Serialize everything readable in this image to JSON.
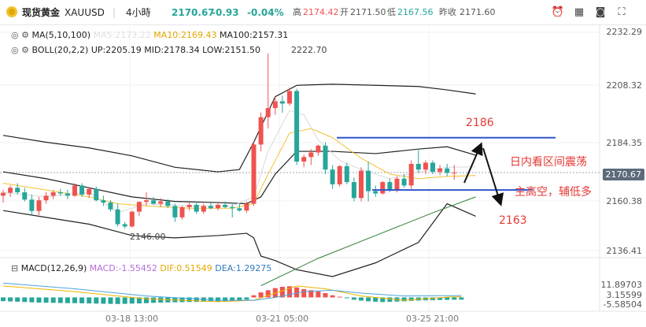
{
  "header": {
    "name": "现货黄金",
    "symbol": "XAUUSD",
    "interval": "4小時",
    "last": "2170.67",
    "change": "-0.93",
    "change_pct": "-0.04%",
    "high_label": "高",
    "high": "2174.42",
    "open_label": "开",
    "open": "2171.50",
    "low_label": "低",
    "low": "2167.56",
    "prev_label": "昨收",
    "prev": "2171.60"
  },
  "indicators": {
    "ma_label": "MA(5,10,100)",
    "ma5": "MA5:2173.22",
    "ma10": "MA10:2169.43",
    "ma100": "MA100:2157.31",
    "boll_label": "BOLL(20,2,2)",
    "boll_up": "UP:2205.19",
    "boll_mid": "MID:2178.34",
    "boll_low": "LOW:2151.50",
    "macd_label": "MACD(12,26,9)",
    "macd": "MACD:-1.55452",
    "dif": "DIF:0.51549",
    "dea": "DEA:1.29275"
  },
  "colors": {
    "up": "#26a69a",
    "down": "#ef5350",
    "ma5": "#333333",
    "ma10": "#f2c230",
    "ma100": "#2e7d32",
    "boll": "#222222",
    "level_line": "#2f55c9",
    "annotation": "#e53935",
    "dif": "#f0b400",
    "dea": "#4aa3e0"
  },
  "icons": [
    "eye-icon",
    "settings-icon",
    "close-icon",
    "collapse-icon",
    "chevron-down-icon",
    "alarm-icon",
    "grid-icon",
    "camera-icon",
    "fullscreen-icon"
  ],
  "chart_data": {
    "type": "candlestick",
    "price_axis_ticks": [
      "2232.29",
      "2208.32",
      "2184.35",
      "2160.38",
      "2136.41"
    ],
    "current_price_badge": "2170.67",
    "macd_axis_ticks": [
      "11.89703",
      "3.15599",
      "-5.58504"
    ],
    "x_ticks": [
      "03-18 13:00",
      "03-21 05:00",
      "03-25 21:00"
    ],
    "ylim": [
      2130,
      2236
    ],
    "candles": [
      {
        "o": 2160.5,
        "h": 2163.0,
        "l": 2157.5,
        "c": 2161.8
      },
      {
        "o": 2161.8,
        "h": 2165.0,
        "l": 2160.0,
        "c": 2164.0
      },
      {
        "o": 2164.0,
        "h": 2166.0,
        "l": 2161.0,
        "c": 2162.0
      },
      {
        "o": 2162.0,
        "h": 2164.0,
        "l": 2158.0,
        "c": 2158.8
      },
      {
        "o": 2158.8,
        "h": 2161.0,
        "l": 2152.0,
        "c": 2153.8
      },
      {
        "o": 2153.8,
        "h": 2160.0,
        "l": 2152.0,
        "c": 2158.5
      },
      {
        "o": 2158.5,
        "h": 2162.0,
        "l": 2157.0,
        "c": 2160.5
      },
      {
        "o": 2160.5,
        "h": 2163.0,
        "l": 2159.0,
        "c": 2162.0
      },
      {
        "o": 2162.0,
        "h": 2163.5,
        "l": 2160.5,
        "c": 2161.5
      },
      {
        "o": 2161.5,
        "h": 2163.0,
        "l": 2159.0,
        "c": 2160.5
      },
      {
        "o": 2160.5,
        "h": 2166.0,
        "l": 2160.0,
        "c": 2165.0
      },
      {
        "o": 2165.0,
        "h": 2166.0,
        "l": 2160.0,
        "c": 2161.0
      },
      {
        "o": 2161.0,
        "h": 2164.0,
        "l": 2159.5,
        "c": 2163.5
      },
      {
        "o": 2163.5,
        "h": 2164.5,
        "l": 2158.0,
        "c": 2158.5
      },
      {
        "o": 2158.5,
        "h": 2160.5,
        "l": 2156.0,
        "c": 2157.5
      },
      {
        "o": 2157.5,
        "h": 2158.5,
        "l": 2153.5,
        "c": 2154.5
      },
      {
        "o": 2154.5,
        "h": 2157.0,
        "l": 2147.0,
        "c": 2148.0
      },
      {
        "o": 2148.0,
        "h": 2149.0,
        "l": 2146.0,
        "c": 2147.0
      },
      {
        "o": 2147.0,
        "h": 2154.0,
        "l": 2146.5,
        "c": 2153.5
      },
      {
        "o": 2153.5,
        "h": 2158.0,
        "l": 2151.5,
        "c": 2157.8
      },
      {
        "o": 2157.8,
        "h": 2162.0,
        "l": 2156.0,
        "c": 2158.5
      },
      {
        "o": 2158.5,
        "h": 2160.0,
        "l": 2156.5,
        "c": 2157.0
      },
      {
        "o": 2157.0,
        "h": 2159.5,
        "l": 2155.5,
        "c": 2158.0
      },
      {
        "o": 2158.0,
        "h": 2159.0,
        "l": 2155.0,
        "c": 2156.0
      },
      {
        "o": 2156.0,
        "h": 2157.0,
        "l": 2149.0,
        "c": 2151.0
      },
      {
        "o": 2151.0,
        "h": 2156.0,
        "l": 2150.0,
        "c": 2155.5
      },
      {
        "o": 2155.5,
        "h": 2157.5,
        "l": 2154.0,
        "c": 2156.5
      },
      {
        "o": 2156.5,
        "h": 2158.0,
        "l": 2152.5,
        "c": 2153.5
      },
      {
        "o": 2153.5,
        "h": 2157.0,
        "l": 2152.5,
        "c": 2156.0
      },
      {
        "o": 2156.0,
        "h": 2157.5,
        "l": 2154.5,
        "c": 2155.0
      },
      {
        "o": 2155.0,
        "h": 2157.5,
        "l": 2154.0,
        "c": 2156.5
      },
      {
        "o": 2156.5,
        "h": 2158.0,
        "l": 2155.0,
        "c": 2155.5
      },
      {
        "o": 2155.5,
        "h": 2157.5,
        "l": 2151.0,
        "c": 2155.0
      },
      {
        "o": 2155.0,
        "h": 2157.0,
        "l": 2153.5,
        "c": 2154.0
      },
      {
        "o": 2154.0,
        "h": 2158.0,
        "l": 2153.0,
        "c": 2157.0
      },
      {
        "o": 2157.0,
        "h": 2184.0,
        "l": 2156.0,
        "c": 2183.0
      },
      {
        "o": 2183.0,
        "h": 2197.0,
        "l": 2180.0,
        "c": 2195.0
      },
      {
        "o": 2195.0,
        "h": 2223.0,
        "l": 2190.0,
        "c": 2199.0
      },
      {
        "o": 2199.0,
        "h": 2204.0,
        "l": 2196.0,
        "c": 2202.0
      },
      {
        "o": 2202.0,
        "h": 2204.5,
        "l": 2197.0,
        "c": 2201.0
      },
      {
        "o": 2201.0,
        "h": 2208.0,
        "l": 2200.0,
        "c": 2206.5
      },
      {
        "o": 2206.5,
        "h": 2207.5,
        "l": 2174.0,
        "c": 2175.5
      },
      {
        "o": 2175.5,
        "h": 2178.5,
        "l": 2173.0,
        "c": 2177.5
      },
      {
        "o": 2177.5,
        "h": 2181.0,
        "l": 2174.0,
        "c": 2179.5
      },
      {
        "o": 2179.5,
        "h": 2183.0,
        "l": 2178.0,
        "c": 2182.5
      },
      {
        "o": 2182.5,
        "h": 2184.0,
        "l": 2170.0,
        "c": 2172.0
      },
      {
        "o": 2172.0,
        "h": 2174.0,
        "l": 2163.5,
        "c": 2165.5
      },
      {
        "o": 2165.5,
        "h": 2174.0,
        "l": 2164.5,
        "c": 2173.5
      },
      {
        "o": 2173.5,
        "h": 2175.0,
        "l": 2165.5,
        "c": 2166.5
      },
      {
        "o": 2166.5,
        "h": 2168.5,
        "l": 2158.0,
        "c": 2159.5
      },
      {
        "o": 2159.5,
        "h": 2173.0,
        "l": 2158.0,
        "c": 2171.5
      },
      {
        "o": 2171.5,
        "h": 2175.5,
        "l": 2158.0,
        "c": 2162.5
      },
      {
        "o": 2162.5,
        "h": 2165.0,
        "l": 2160.0,
        "c": 2161.5
      },
      {
        "o": 2161.5,
        "h": 2167.0,
        "l": 2161.0,
        "c": 2166.5
      },
      {
        "o": 2166.5,
        "h": 2168.0,
        "l": 2162.0,
        "c": 2163.0
      },
      {
        "o": 2163.0,
        "h": 2169.0,
        "l": 2162.0,
        "c": 2168.0
      },
      {
        "o": 2168.0,
        "h": 2170.0,
        "l": 2164.0,
        "c": 2165.0
      },
      {
        "o": 2165.0,
        "h": 2176.0,
        "l": 2163.5,
        "c": 2174.5
      },
      {
        "o": 2174.5,
        "h": 2180.5,
        "l": 2170.5,
        "c": 2172.0
      },
      {
        "o": 2172.0,
        "h": 2176.0,
        "l": 2170.0,
        "c": 2175.0
      },
      {
        "o": 2175.0,
        "h": 2176.0,
        "l": 2170.0,
        "c": 2171.0
      },
      {
        "o": 2171.0,
        "h": 2174.0,
        "l": 2169.5,
        "c": 2172.5
      },
      {
        "o": 2172.5,
        "h": 2174.5,
        "l": 2169.0,
        "c": 2170.5
      },
      {
        "o": 2170.5,
        "h": 2174.0,
        "l": 2167.5,
        "c": 2170.67
      }
    ],
    "ma_lines": {
      "boll_upper": [
        [
          0,
          2187
        ],
        [
          6,
          2184
        ],
        [
          12,
          2181.5
        ],
        [
          18,
          2178
        ],
        [
          24,
          2173
        ],
        [
          30,
          2171
        ],
        [
          33,
          2172
        ],
        [
          35,
          2184
        ],
        [
          38,
          2204
        ],
        [
          41,
          2209
        ],
        [
          46,
          2209.5
        ],
        [
          52,
          2209
        ],
        [
          58,
          2208.5
        ],
        [
          62,
          2207
        ],
        [
          66,
          2205.2
        ]
      ],
      "boll_mid": [
        [
          0,
          2171
        ],
        [
          6,
          2168
        ],
        [
          12,
          2164
        ],
        [
          18,
          2160
        ],
        [
          24,
          2158
        ],
        [
          30,
          2157.5
        ],
        [
          34,
          2157
        ],
        [
          36,
          2160
        ],
        [
          38,
          2170
        ],
        [
          41,
          2180
        ],
        [
          46,
          2180
        ],
        [
          52,
          2179
        ],
        [
          58,
          2181
        ],
        [
          62,
          2182
        ],
        [
          66,
          2178.3
        ]
      ],
      "boll_lower": [
        [
          0,
          2154
        ],
        [
          6,
          2151
        ],
        [
          12,
          2148
        ],
        [
          18,
          2143
        ],
        [
          24,
          2142
        ],
        [
          30,
          2143
        ],
        [
          34,
          2144
        ],
        [
          35,
          2142
        ],
        [
          36,
          2134
        ],
        [
          38,
          2132
        ],
        [
          41,
          2128
        ],
        [
          46,
          2125
        ],
        [
          52,
          2131
        ],
        [
          58,
          2140
        ],
        [
          62,
          2157
        ],
        [
          66,
          2151.5
        ]
      ],
      "ma5": [
        [
          0,
          2162
        ],
        [
          6,
          2160
        ],
        [
          12,
          2162
        ],
        [
          16,
          2153
        ],
        [
          20,
          2157
        ],
        [
          26,
          2156
        ],
        [
          32,
          2156
        ],
        [
          35,
          2160
        ],
        [
          37,
          2180
        ],
        [
          40,
          2198
        ],
        [
          42,
          2196
        ],
        [
          44,
          2185
        ],
        [
          47,
          2176
        ],
        [
          50,
          2172
        ],
        [
          54,
          2168
        ],
        [
          58,
          2171
        ],
        [
          62,
          2173
        ],
        [
          66,
          2173.2
        ]
      ],
      "ma10": [
        [
          0,
          2166
        ],
        [
          6,
          2163
        ],
        [
          12,
          2160
        ],
        [
          16,
          2157
        ],
        [
          20,
          2156
        ],
        [
          26,
          2155
        ],
        [
          32,
          2155
        ],
        [
          35,
          2157
        ],
        [
          37,
          2170
        ],
        [
          40,
          2188
        ],
        [
          43,
          2190
        ],
        [
          46,
          2186
        ],
        [
          50,
          2177
        ],
        [
          54,
          2170
        ],
        [
          58,
          2168
        ],
        [
          62,
          2169
        ],
        [
          66,
          2169.4
        ]
      ],
      "ma100": [
        [
          36,
          2121
        ],
        [
          44,
          2133
        ],
        [
          52,
          2143
        ],
        [
          60,
          2153
        ],
        [
          66,
          2160
        ]
      ]
    },
    "levels": [
      {
        "label": "2186",
        "price": 2186
      },
      {
        "label": "2163",
        "price": 2163
      }
    ],
    "level_labels": [
      "2186",
      "2163"
    ],
    "peak_label": "2222.70",
    "trough_label": "2146.00",
    "annotations": [
      "日内看区间震荡",
      "主高空，辅低多"
    ],
    "macd": {
      "ylim": [
        -8,
        14
      ],
      "hist": [
        -2.6,
        -2.8,
        -3,
        -3.2,
        -3.4,
        -3.6,
        -3.7,
        -3.8,
        -3.9,
        -4,
        -4,
        -4.1,
        -4.2,
        -4.3,
        -4.4,
        -4.5,
        -4.6,
        -4.5,
        -4.3,
        -4.2,
        -4,
        -3.8,
        -3.6,
        -3.5,
        -3.4,
        -3.3,
        -3.2,
        -3.1,
        -3,
        -2.9,
        -2.8,
        -2.7,
        -2.6,
        -2.5,
        -1.5,
        1.5,
        3.5,
        5,
        6.5,
        7.4,
        7.8,
        7,
        5.8,
        5,
        4.2,
        3,
        1.5,
        0.5,
        -0.5,
        -1.6,
        -2.2,
        -2.7,
        -3,
        -3.2,
        -3.1,
        -2.9,
        -2.7,
        -2.4,
        -2.2,
        -2,
        -1.9,
        -1.8,
        -1.7,
        -1.6,
        -1.55
      ],
      "dif": [
        [
          0,
          8
        ],
        [
          10,
          4
        ],
        [
          20,
          -1
        ],
        [
          30,
          -3
        ],
        [
          35,
          -2
        ],
        [
          38,
          3
        ],
        [
          41,
          8
        ],
        [
          45,
          6
        ],
        [
          50,
          1
        ],
        [
          56,
          -2
        ],
        [
          62,
          0.2
        ],
        [
          64,
          0.5
        ]
      ],
      "dea": [
        [
          0,
          10
        ],
        [
          10,
          6
        ],
        [
          20,
          1
        ],
        [
          30,
          -2
        ],
        [
          35,
          -2
        ],
        [
          38,
          0
        ],
        [
          42,
          4
        ],
        [
          46,
          5
        ],
        [
          50,
          3
        ],
        [
          56,
          1
        ],
        [
          62,
          1.2
        ],
        [
          64,
          1.3
        ]
      ]
    }
  }
}
